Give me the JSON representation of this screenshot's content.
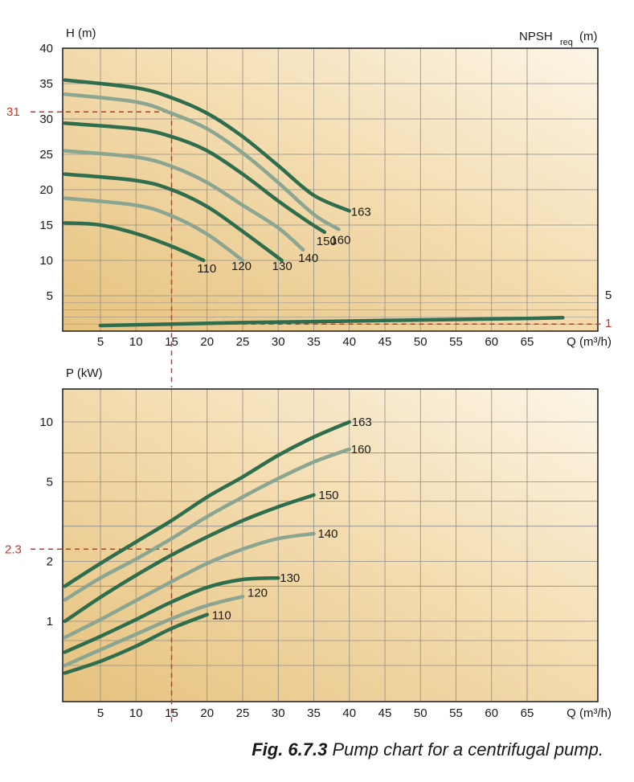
{
  "caption": {
    "fig_label": "Fig. 6.7.3",
    "fig_text": " Pump chart for a centrifugal pump."
  },
  "colors": {
    "dark": "#2e6e4e",
    "light": "#8aa591",
    "ref": "#c0392b",
    "grid": "#8c8c8c",
    "bg_warm": "#e9c98a",
    "bg_light": "#faf1de"
  },
  "chart_data": [
    {
      "type": "line",
      "title": "",
      "ylabel": "H (m)",
      "y2label_main": "NPSH",
      "y2label_sub": "req",
      "y2label_unit": " (m)",
      "xlabel": "Q (m³/h)",
      "xlim": [
        0,
        70
      ],
      "ylim": [
        0,
        40
      ],
      "x_ticks": [
        "5",
        "10",
        "15",
        "20",
        "25",
        "30",
        "35",
        "40",
        "45",
        "50",
        "55",
        "60",
        "65"
      ],
      "y_ticks": [
        "5",
        "10",
        "15",
        "20",
        "25",
        "30",
        "35",
        "40"
      ],
      "npsh_ticks": [
        "5",
        "1"
      ],
      "grid": true,
      "series": [
        {
          "name": "163",
          "x": [
            0,
            10,
            15,
            20,
            25,
            30,
            35,
            40
          ],
          "y": [
            35.5,
            34.4,
            33.0,
            30.8,
            27.5,
            23.4,
            19.2,
            17.0
          ]
        },
        {
          "name": "160",
          "x": [
            0,
            10,
            15,
            20,
            25,
            30,
            35,
            38.5
          ],
          "y": [
            33.5,
            32.4,
            30.8,
            28.6,
            25.2,
            21.0,
            16.5,
            14.4
          ]
        },
        {
          "name": "150",
          "x": [
            0,
            10,
            15,
            20,
            25,
            30,
            34,
            36.5
          ],
          "y": [
            29.4,
            28.6,
            27.5,
            25.5,
            22.2,
            18.4,
            15.6,
            14.0
          ]
        },
        {
          "name": "140",
          "x": [
            0,
            10,
            15,
            20,
            25,
            30,
            33.5
          ],
          "y": [
            25.5,
            24.6,
            23.3,
            21.0,
            17.8,
            14.6,
            11.5
          ]
        },
        {
          "name": "130",
          "x": [
            0,
            10,
            15,
            20,
            25,
            30.5
          ],
          "y": [
            22.2,
            21.3,
            20.0,
            17.6,
            14.1,
            10.0
          ]
        },
        {
          "name": "120",
          "x": [
            0,
            10,
            15,
            20,
            25
          ],
          "y": [
            18.8,
            17.8,
            16.3,
            13.7,
            10.0
          ]
        },
        {
          "name": "110",
          "x": [
            0,
            5,
            10,
            15,
            19.5
          ],
          "y": [
            15.3,
            15.0,
            13.8,
            12.0,
            10.0
          ]
        }
      ],
      "npsh_curve": {
        "name": "NPSHreq",
        "x": [
          5,
          15,
          25,
          35,
          45,
          55,
          65,
          70
        ],
        "y": [
          0.8,
          1.0,
          1.2,
          1.35,
          1.5,
          1.65,
          1.8,
          1.9
        ]
      },
      "reference": {
        "x": 15,
        "y": 31,
        "y_label": "31",
        "npsh_label": "1"
      }
    },
    {
      "type": "line",
      "title": "",
      "ylabel": "P (kW)",
      "xlabel": "Q (m³/h)",
      "xlim": [
        0,
        70
      ],
      "ylim": [
        0.5,
        14
      ],
      "y_scale": "log",
      "x_ticks": [
        "5",
        "10",
        "15",
        "20",
        "25",
        "30",
        "35",
        "40",
        "45",
        "50",
        "55",
        "60",
        "65"
      ],
      "y_ticks": [
        {
          "v": 1,
          "t": "1"
        },
        {
          "v": 2,
          "t": "2"
        },
        {
          "v": 5,
          "t": "5"
        },
        {
          "v": 10,
          "t": "10"
        }
      ],
      "grid": true,
      "series": [
        {
          "name": "163",
          "x": [
            0,
            5,
            10,
            15,
            20,
            25,
            30,
            35,
            40
          ],
          "y": [
            1.5,
            1.95,
            2.5,
            3.2,
            4.2,
            5.3,
            6.8,
            8.4,
            10.0
          ]
        },
        {
          "name": "160",
          "x": [
            0,
            5,
            10,
            15,
            20,
            25,
            30,
            35,
            40
          ],
          "y": [
            1.28,
            1.65,
            2.05,
            2.6,
            3.35,
            4.2,
            5.2,
            6.3,
            7.3
          ]
        },
        {
          "name": "150",
          "x": [
            0,
            5,
            10,
            15,
            20,
            25,
            30,
            35
          ],
          "y": [
            1.0,
            1.32,
            1.7,
            2.15,
            2.65,
            3.2,
            3.75,
            4.3
          ]
        },
        {
          "name": "140",
          "x": [
            0,
            5,
            10,
            15,
            20,
            25,
            30,
            35
          ],
          "y": [
            0.83,
            1.02,
            1.27,
            1.58,
            1.95,
            2.3,
            2.6,
            2.75
          ]
        },
        {
          "name": "130",
          "x": [
            0,
            5,
            10,
            15,
            20,
            25,
            30
          ],
          "y": [
            0.7,
            0.84,
            1.02,
            1.25,
            1.48,
            1.62,
            1.65
          ]
        },
        {
          "name": "120",
          "x": [
            0,
            5,
            10,
            15,
            20,
            25
          ],
          "y": [
            0.6,
            0.72,
            0.86,
            1.03,
            1.2,
            1.33
          ]
        },
        {
          "name": "110",
          "x": [
            0,
            5,
            10,
            15,
            20
          ],
          "y": [
            0.55,
            0.63,
            0.75,
            0.92,
            1.08
          ]
        }
      ],
      "reference": {
        "x": 15,
        "y": 2.3,
        "y_label": "2.3"
      }
    }
  ]
}
